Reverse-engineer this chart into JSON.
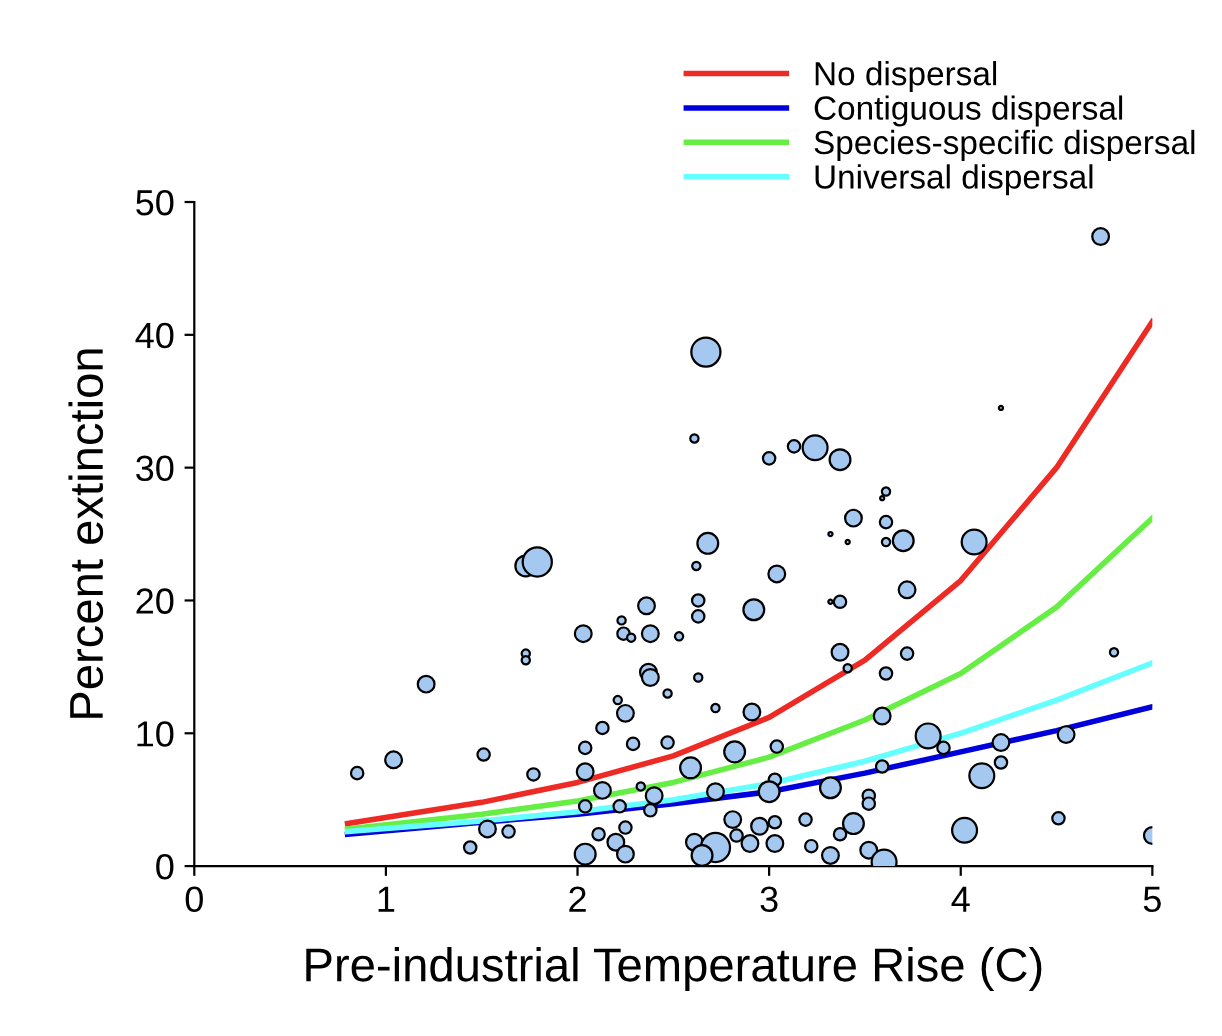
{
  "chart_data": {
    "type": "bubble",
    "xlabel": "Pre-industrial Temperature Rise (C)",
    "ylabel": "Percent extinction",
    "xlim": [
      0,
      5
    ],
    "ylim": [
      0,
      50
    ],
    "xticks": [
      0,
      1,
      2,
      3,
      4,
      5
    ],
    "yticks": [
      0,
      10,
      20,
      30,
      40,
      50
    ],
    "grid": false,
    "legend": "top right",
    "relative": false,
    "series": [
      {
        "color": "#a4c8f0",
        "x": [
          0.85,
          1.04,
          1.21,
          1.51,
          1.77,
          1.73,
          1.73,
          1.73,
          1.79,
          1.53,
          1.64,
          1.44,
          2.67,
          2.61,
          3.0,
          3.13,
          3.24,
          3.37,
          2.68,
          2.62,
          3.04,
          3.32,
          2.63,
          2.63,
          2.92,
          2.36,
          2.23,
          2.24,
          2.28,
          2.38,
          2.03,
          2.53,
          2.37,
          2.38,
          2.63,
          2.47,
          2.21,
          2.25,
          2.13,
          2.72,
          2.91,
          2.29,
          2.47,
          2.04,
          2.59,
          2.82,
          3.04,
          2.04,
          2.13,
          2.33,
          2.4,
          2.72,
          3.03,
          3.0,
          3.32,
          2.04,
          2.22,
          2.38,
          2.81,
          3.19,
          3.03,
          2.04,
          2.11,
          2.2,
          2.25,
          2.25,
          2.61,
          2.72,
          2.65,
          2.83,
          2.9,
          3.03,
          2.95,
          3.22,
          3.32,
          4.73,
          4.21,
          3.61,
          3.59,
          3.44,
          3.61,
          3.41,
          3.61,
          3.7,
          4.07,
          3.72,
          3.32,
          3.37,
          3.37,
          3.41,
          3.72,
          3.61,
          4.8,
          3.59,
          3.83,
          3.91,
          4.21,
          4.21,
          4.55,
          4.11,
          3.59,
          3.52,
          3.52,
          3.44,
          3.37,
          3.52,
          3.6,
          4.02,
          4.51,
          5.0
        ],
        "values": [
          7.0,
          8.0,
          13.7,
          8.4,
          6.9,
          16.0,
          15.5,
          22.6,
          22.9,
          2.8,
          2.6,
          1.4,
          38.7,
          32.2,
          30.7,
          31.6,
          31.5,
          30.6,
          24.3,
          22.6,
          22.0,
          25.0,
          20.0,
          18.8,
          19.3,
          19.6,
          18.5,
          17.5,
          17.2,
          17.5,
          17.5,
          17.3,
          14.6,
          14.2,
          14.2,
          13.0,
          12.5,
          11.5,
          10.4,
          11.9,
          11.6,
          9.2,
          9.3,
          8.9,
          7.4,
          8.6,
          9.0,
          7.1,
          5.7,
          6.0,
          5.3,
          5.6,
          6.5,
          5.6,
          5.9,
          4.5,
          4.5,
          4.2,
          3.5,
          3.5,
          3.3,
          0.9,
          2.4,
          1.8,
          0.9,
          2.9,
          1.8,
          1.4,
          0.8,
          2.3,
          1.7,
          1.7,
          3.0,
          1.5,
          0.8,
          47.4,
          34.5,
          28.2,
          27.7,
          26.2,
          25.9,
          24.4,
          24.4,
          24.5,
          24.4,
          20.8,
          19.9,
          19.9,
          16.1,
          14.9,
          16.0,
          14.5,
          16.1,
          11.3,
          9.8,
          8.9,
          9.3,
          7.8,
          9.9,
          6.8,
          7.5,
          5.3,
          4.7,
          3.2,
          2.4,
          1.2,
          0.3,
          2.7,
          3.6,
          2.3
        ],
        "sizes": [
          0.18,
          0.33,
          0.33,
          0.18,
          0.18,
          0.08,
          0.08,
          0.51,
          1.0,
          0.33,
          0.18,
          0.18,
          1.0,
          0.08,
          0.18,
          0.18,
          0.73,
          0.51,
          0.51,
          0.08,
          0.33,
          0.02,
          0.18,
          0.18,
          0.51,
          0.33,
          0.08,
          0.18,
          0.08,
          0.33,
          0.33,
          0.08,
          0.33,
          0.33,
          0.08,
          0.08,
          0.08,
          0.33,
          0.18,
          0.08,
          0.33,
          0.18,
          0.18,
          0.18,
          0.51,
          0.51,
          0.18,
          0.33,
          0.33,
          0.08,
          0.33,
          0.33,
          0.18,
          0.51,
          0.51,
          0.18,
          0.18,
          0.18,
          0.33,
          0.18,
          0.18,
          0.51,
          0.18,
          0.33,
          0.33,
          0.18,
          0.33,
          1.0,
          0.51,
          0.18,
          0.33,
          0.33,
          0.33,
          0.18,
          0.33,
          0.33,
          0.02,
          0.08,
          0.02,
          0.33,
          0.18,
          0.02,
          0.08,
          0.51,
          0.73,
          0.33,
          0.02,
          0.18,
          0.33,
          0.08,
          0.18,
          0.18,
          0.08,
          0.33,
          0.73,
          0.18,
          0.33,
          0.18,
          0.33,
          0.73,
          0.18,
          0.18,
          0.18,
          0.51,
          0.18,
          0.33,
          0.73,
          0.73,
          0.18,
          0.33
        ]
      },
      {
        "type": "line",
        "name": "No dispersal",
        "color": "#ee2a24",
        "x": [
          0.8,
          1.5,
          2,
          2.5,
          3,
          3.5,
          4,
          4.5,
          5
        ],
        "values": [
          3.2,
          4.8,
          6.3,
          8.3,
          11.2,
          15.5,
          21.5,
          30,
          41
        ]
      },
      {
        "type": "line",
        "name": "Contiguous dispersal",
        "color": "#0000dd",
        "x": [
          0.8,
          1.5,
          2,
          2.5,
          3,
          3.5,
          4,
          4.5,
          5
        ],
        "values": [
          2.4,
          3.3,
          3.9,
          4.7,
          5.6,
          7,
          8.6,
          10.2,
          12
        ]
      },
      {
        "type": "line",
        "name": "Species-specific dispersal",
        "color": "#66ee44",
        "x": [
          0.8,
          1.5,
          2,
          2.5,
          3,
          3.5,
          4,
          4.5,
          5
        ],
        "values": [
          2.8,
          3.9,
          4.9,
          6.3,
          8.2,
          11,
          14.5,
          19.5,
          26.2
        ]
      },
      {
        "type": "line",
        "name": "Universal dispersal",
        "color": "#66ffff",
        "x": [
          0.8,
          1.5,
          2,
          2.5,
          3,
          3.5,
          4,
          4.5,
          5
        ],
        "values": [
          2.6,
          3.4,
          4.1,
          5,
          6.2,
          7.9,
          10,
          12.5,
          15.3
        ]
      }
    ]
  }
}
